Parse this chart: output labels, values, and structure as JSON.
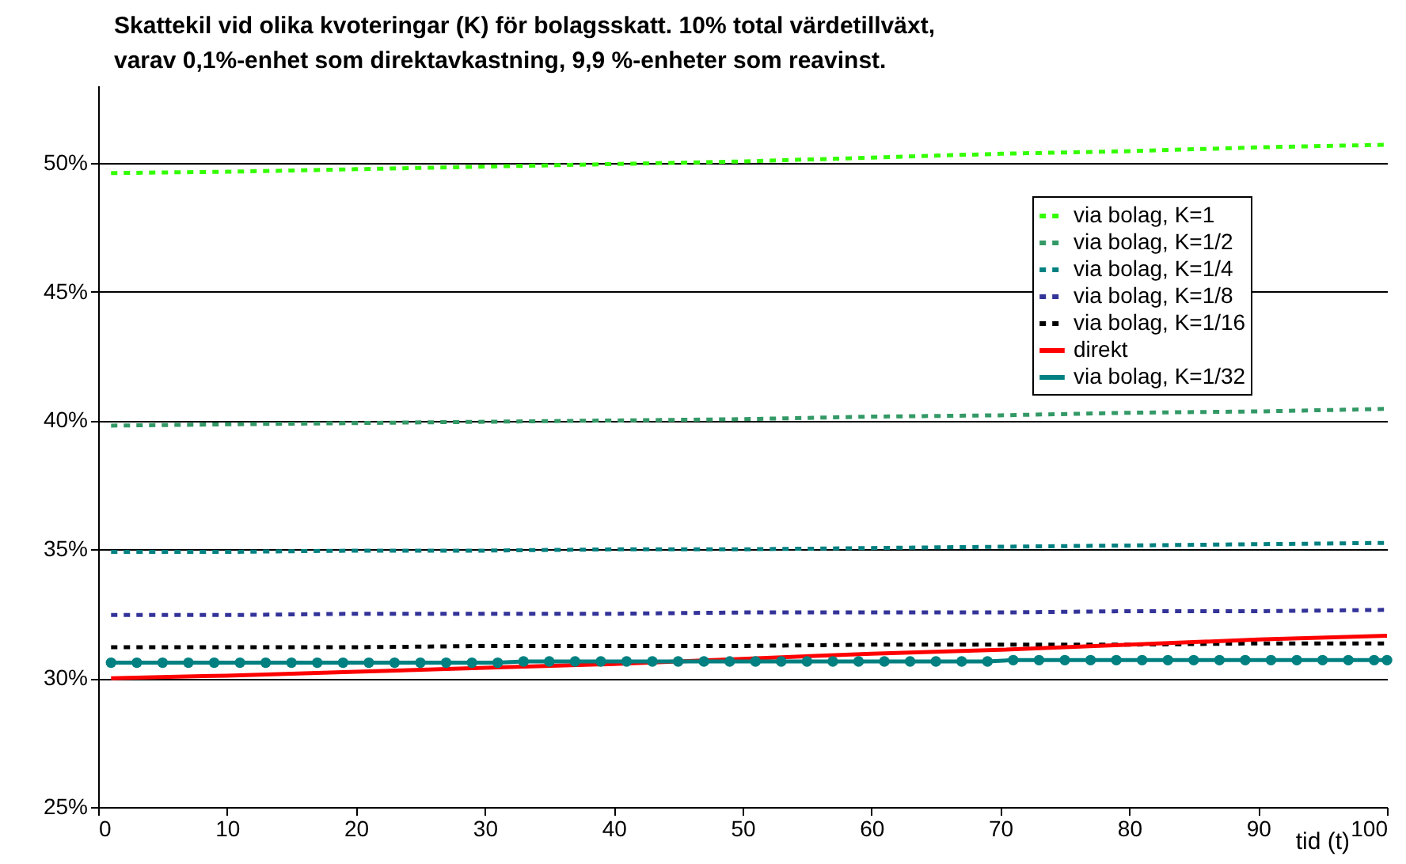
{
  "chart_data": {
    "type": "line",
    "title": "Skattekil vid olika kvoteringar (K) för bolagsskatt.   10% total värdetillväxt,\nvarav 0,1%-enhet som direktavkastning, 9,9 %-enheter som reavinst.",
    "xlabel": "tid (t)",
    "x": [
      1,
      10,
      20,
      30,
      40,
      50,
      60,
      70,
      80,
      90,
      100
    ],
    "series": [
      {
        "name": "via bolag, K=1",
        "color": "#33ff00",
        "line_style": "dashed",
        "values": [
          49.6,
          49.65,
          49.75,
          49.85,
          49.95,
          50.05,
          50.2,
          50.35,
          50.45,
          50.6,
          50.7
        ]
      },
      {
        "name": "via bolag, K=1/2",
        "color": "#339966",
        "line_style": "dashed",
        "values": [
          39.8,
          39.85,
          39.9,
          39.95,
          40.0,
          40.05,
          40.15,
          40.2,
          40.3,
          40.35,
          40.45
        ]
      },
      {
        "name": "via bolag, K=1/4",
        "color": "#008080",
        "line_style": "dashed",
        "values": [
          34.9,
          34.9,
          34.95,
          34.95,
          35.0,
          35.0,
          35.05,
          35.1,
          35.15,
          35.2,
          35.25
        ]
      },
      {
        "name": "via bolag, K=1/8",
        "color": "#333399",
        "line_style": "dashed",
        "values": [
          32.45,
          32.45,
          32.5,
          32.5,
          32.5,
          32.55,
          32.55,
          32.55,
          32.6,
          32.6,
          32.65
        ]
      },
      {
        "name": "via bolag, K=1/16",
        "color": "#000000",
        "line_style": "dashed",
        "values": [
          31.2,
          31.2,
          31.2,
          31.25,
          31.25,
          31.25,
          31.3,
          31.3,
          31.3,
          31.35,
          31.35
        ]
      },
      {
        "name": "direkt",
        "color": "#ff0000",
        "line_style": "solid",
        "values": [
          30.0,
          30.1,
          30.25,
          30.4,
          30.55,
          30.75,
          30.95,
          31.1,
          31.3,
          31.5,
          31.65
        ]
      },
      {
        "name": "via bolag, K=1/32",
        "color": "#008080",
        "line_style": "solid",
        "marker": "circle",
        "x": [
          1,
          3,
          5,
          7,
          9,
          11,
          13,
          15,
          17,
          19,
          21,
          23,
          25,
          27,
          29,
          31,
          33,
          35,
          37,
          39,
          41,
          43,
          45,
          47,
          49,
          51,
          53,
          55,
          57,
          59,
          61,
          63,
          65,
          67,
          69,
          71,
          73,
          75,
          77,
          79,
          81,
          83,
          85,
          87,
          89,
          91,
          93,
          95,
          97,
          99,
          100
        ],
        "values": [
          30.6,
          30.6,
          30.6,
          30.6,
          30.6,
          30.6,
          30.6,
          30.6,
          30.6,
          30.6,
          30.6,
          30.6,
          30.6,
          30.6,
          30.6,
          30.6,
          30.65,
          30.65,
          30.65,
          30.65,
          30.65,
          30.65,
          30.65,
          30.65,
          30.65,
          30.65,
          30.65,
          30.65,
          30.65,
          30.65,
          30.65,
          30.65,
          30.65,
          30.65,
          30.65,
          30.7,
          30.7,
          30.7,
          30.7,
          30.7,
          30.7,
          30.7,
          30.7,
          30.7,
          30.7,
          30.7,
          30.7,
          30.7,
          30.7,
          30.7,
          30.7
        ]
      }
    ],
    "xlim": [
      0,
      100
    ],
    "xticks": [
      0,
      10,
      20,
      30,
      40,
      50,
      60,
      70,
      80,
      90,
      100
    ],
    "ylim": [
      25,
      53
    ],
    "yticks": [
      {
        "value": 25,
        "label": "25%"
      },
      {
        "value": 30,
        "label": "30%"
      },
      {
        "value": 35,
        "label": "35%"
      },
      {
        "value": 40,
        "label": "40%"
      },
      {
        "value": 45,
        "label": "45%"
      },
      {
        "value": 50,
        "label": "50%"
      }
    ],
    "grid": "y",
    "legend": "top right"
  }
}
